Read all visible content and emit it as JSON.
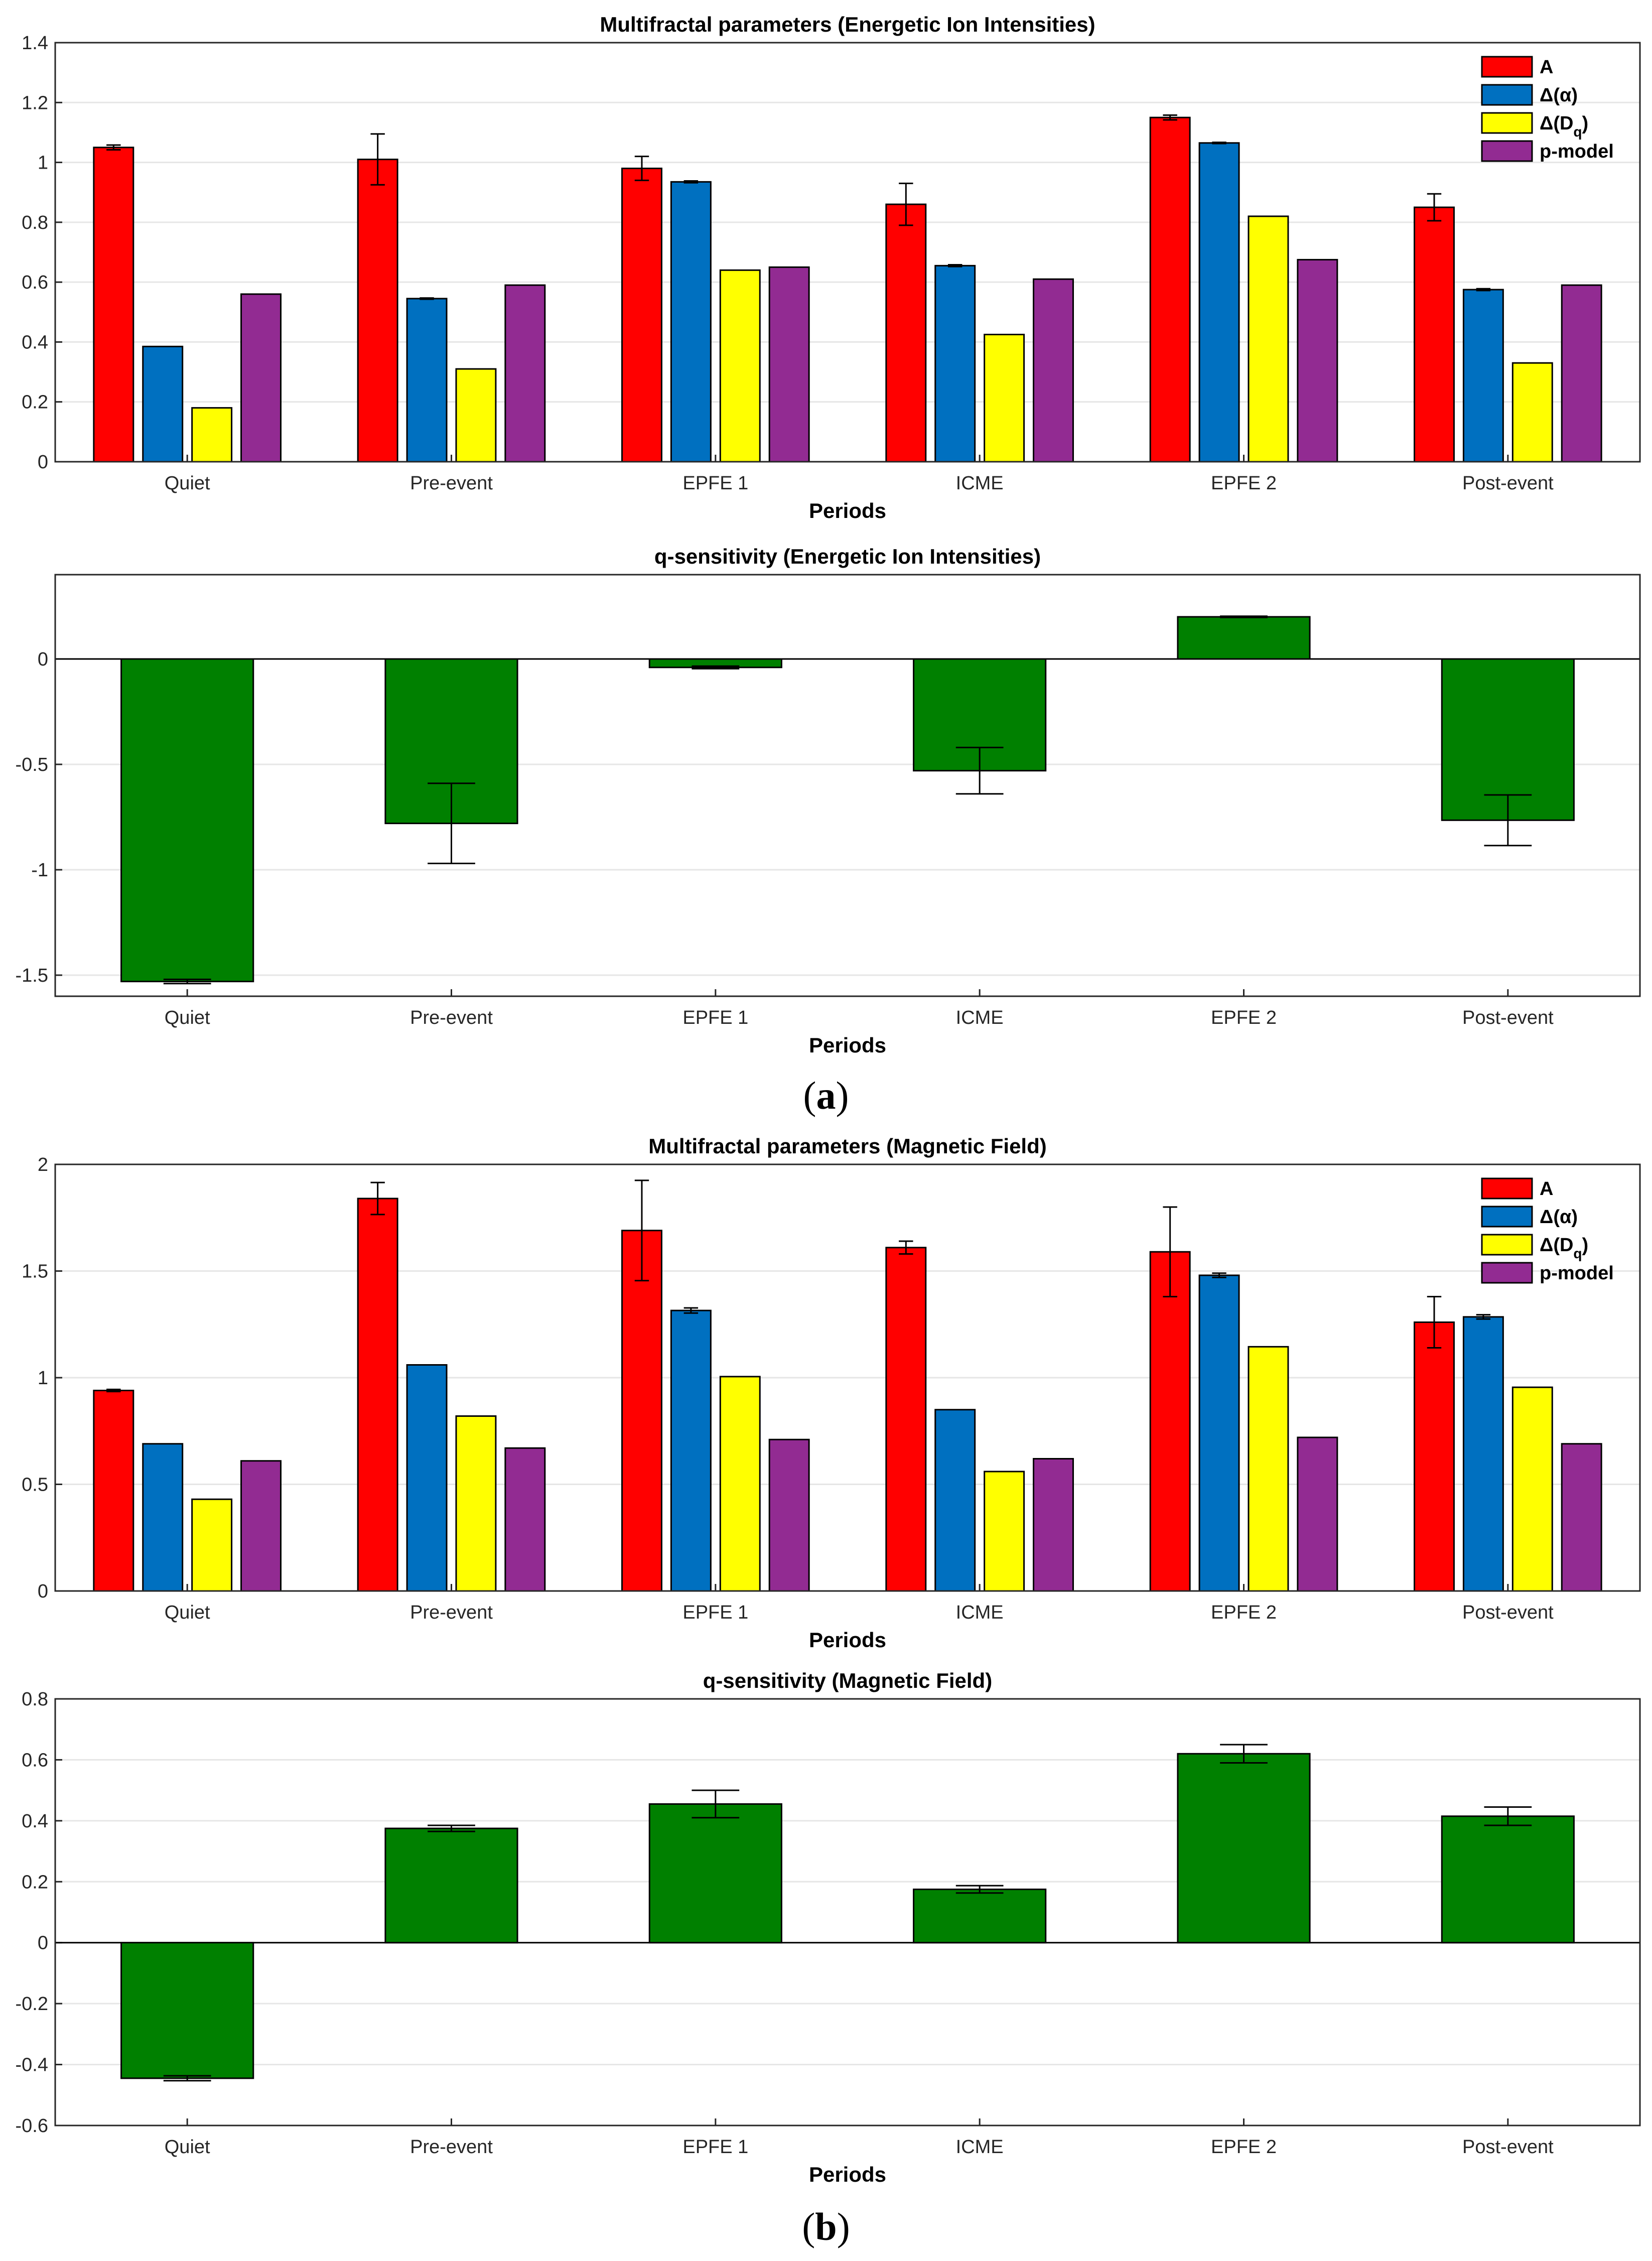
{
  "colors": {
    "A": "#ff0000",
    "delta_alpha": "#0070c0",
    "delta_Dq": "#ffff00",
    "p_model": "#922b92",
    "q_sensitivity": "#008000"
  },
  "panel_labels": {
    "a": {
      "open": "(",
      "letter": "a",
      "close": ")"
    },
    "b": {
      "open": "(",
      "letter": "b",
      "close": ")"
    }
  },
  "chart_data": [
    {
      "id": "ion-multifractal",
      "type": "bar",
      "title": "Multifractal parameters (Energetic Ion Intensities)",
      "xlabel": "Periods",
      "ylabel": "",
      "ylim": [
        0,
        1.4
      ],
      "yticks": [
        0,
        0.2,
        0.4,
        0.6,
        0.8,
        1,
        1.2,
        1.4
      ],
      "grid": true,
      "legend_position": "top-right",
      "categories": [
        "Quiet",
        "Pre-event",
        "EPFE 1",
        "ICME",
        "EPFE 2",
        "Post-event"
      ],
      "series": [
        {
          "name": "A",
          "color_key": "A",
          "values": [
            1.05,
            1.01,
            0.98,
            0.86,
            1.15,
            0.85
          ],
          "errors": [
            0.008,
            0.085,
            0.04,
            0.07,
            0.008,
            0.045
          ]
        },
        {
          "name": "Δ(α)",
          "color_key": "delta_alpha",
          "values": [
            0.385,
            0.545,
            0.935,
            0.655,
            1.065,
            0.575
          ],
          "errors": [
            0,
            0.002,
            0.003,
            0.003,
            0.002,
            0.003
          ]
        },
        {
          "name": "Δ(D_q)",
          "color_key": "delta_Dq",
          "values": [
            0.18,
            0.31,
            0.64,
            0.425,
            0.82,
            0.33
          ],
          "errors": [
            0,
            0,
            0,
            0,
            0,
            0
          ]
        },
        {
          "name": "p-model",
          "color_key": "p_model",
          "values": [
            0.56,
            0.59,
            0.65,
            0.61,
            0.675,
            0.59
          ],
          "errors": [
            0,
            0,
            0,
            0,
            0,
            0
          ]
        }
      ]
    },
    {
      "id": "ion-q-sensitivity",
      "type": "bar",
      "title": "q-sensitivity (Energetic Ion Intensities)",
      "xlabel": "Periods",
      "ylabel": "",
      "ylim": [
        -1.6,
        0.4
      ],
      "yticks": [
        -1.5,
        -1,
        -0.5,
        0
      ],
      "grid": true,
      "categories": [
        "Quiet",
        "Pre-event",
        "EPFE 1",
        "ICME",
        "EPFE 2",
        "Post-event"
      ],
      "series": [
        {
          "name": "q-sensitivity",
          "color_key": "q_sensitivity",
          "values": [
            -1.53,
            -0.78,
            -0.04,
            -0.53,
            0.2,
            -0.765
          ],
          "errors": [
            0.01,
            0.19,
            0.006,
            0.11,
            0.003,
            0.12
          ]
        }
      ]
    },
    {
      "id": "mag-multifractal",
      "type": "bar",
      "title": "Multifractal parameters (Magnetic Field)",
      "xlabel": "Periods",
      "ylabel": "",
      "ylim": [
        0,
        2
      ],
      "yticks": [
        0,
        0.5,
        1,
        1.5,
        2
      ],
      "grid": true,
      "legend_position": "top-right",
      "categories": [
        "Quiet",
        "Pre-event",
        "EPFE 1",
        "ICME",
        "EPFE 2",
        "Post-event"
      ],
      "series": [
        {
          "name": "A",
          "color_key": "A",
          "values": [
            0.94,
            1.84,
            1.69,
            1.61,
            1.59,
            1.26
          ],
          "errors": [
            0.005,
            0.075,
            0.235,
            0.03,
            0.21,
            0.12
          ]
        },
        {
          "name": "Δ(α)",
          "color_key": "delta_alpha",
          "values": [
            0.69,
            1.06,
            1.315,
            0.85,
            1.48,
            1.285
          ],
          "errors": [
            0,
            0,
            0.012,
            0,
            0.01,
            0.01
          ]
        },
        {
          "name": "Δ(D_q)",
          "color_key": "delta_Dq",
          "values": [
            0.43,
            0.82,
            1.005,
            0.56,
            1.145,
            0.955
          ],
          "errors": [
            0,
            0,
            0,
            0,
            0,
            0
          ]
        },
        {
          "name": "p-model",
          "color_key": "p_model",
          "values": [
            0.61,
            0.67,
            0.71,
            0.62,
            0.72,
            0.69
          ],
          "errors": [
            0,
            0,
            0,
            0,
            0,
            0
          ]
        }
      ]
    },
    {
      "id": "mag-q-sensitivity",
      "type": "bar",
      "title": "q-sensitivity (Magnetic Field)",
      "xlabel": "Periods",
      "ylabel": "",
      "ylim": [
        -0.6,
        0.8
      ],
      "yticks": [
        -0.6,
        -0.4,
        -0.2,
        0,
        0.2,
        0.4,
        0.6,
        0.8
      ],
      "grid": true,
      "categories": [
        "Quiet",
        "Pre-event",
        "EPFE 1",
        "ICME",
        "EPFE 2",
        "Post-event"
      ],
      "series": [
        {
          "name": "q-sensitivity",
          "color_key": "q_sensitivity",
          "values": [
            -0.445,
            0.375,
            0.455,
            0.175,
            0.62,
            0.415
          ],
          "errors": [
            0.008,
            0.01,
            0.045,
            0.012,
            0.03,
            0.03
          ]
        }
      ]
    }
  ]
}
